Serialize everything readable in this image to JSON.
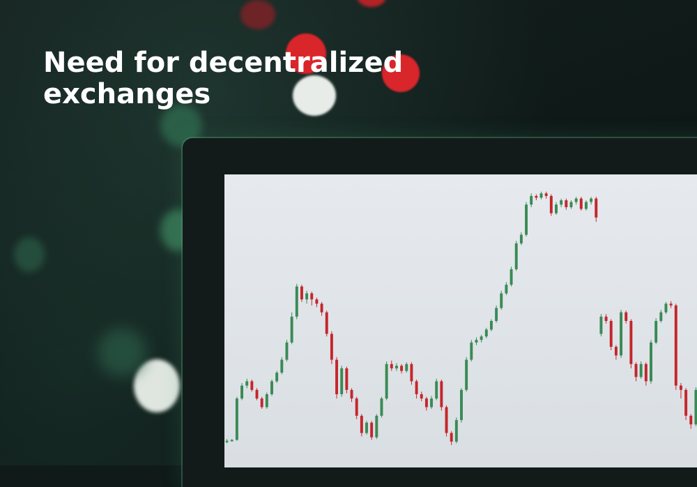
{
  "headline": {
    "line1": "Need for decentralized",
    "line2": "exchanges"
  },
  "colors": {
    "background": "#0f1a19",
    "headline_text": "#ffffff",
    "screen": "#e2e6ea",
    "candle_up": "#3a8a55",
    "candle_down": "#c4262b",
    "bokeh_red": "#d9262b",
    "bokeh_white": "#e8ece8",
    "bokeh_green": "#3f8a62"
  },
  "chart_data": {
    "type": "candlestick",
    "candles": [
      {
        "o": 90,
        "c": 91,
        "h": 93,
        "l": 88
      },
      {
        "o": 91,
        "c": 92,
        "h": 93,
        "l": 90
      },
      {
        "o": 92,
        "c": 140,
        "h": 142,
        "l": 91
      },
      {
        "o": 140,
        "c": 155,
        "h": 158,
        "l": 138
      },
      {
        "o": 155,
        "c": 160,
        "h": 163,
        "l": 152
      },
      {
        "o": 160,
        "c": 150,
        "h": 162,
        "l": 148
      },
      {
        "o": 150,
        "c": 140,
        "h": 152,
        "l": 138
      },
      {
        "o": 140,
        "c": 130,
        "h": 142,
        "l": 128
      },
      {
        "o": 130,
        "c": 145,
        "h": 147,
        "l": 128
      },
      {
        "o": 145,
        "c": 160,
        "h": 162,
        "l": 143
      },
      {
        "o": 160,
        "c": 170,
        "h": 172,
        "l": 158
      },
      {
        "o": 170,
        "c": 185,
        "h": 188,
        "l": 168
      },
      {
        "o": 185,
        "c": 205,
        "h": 208,
        "l": 183
      },
      {
        "o": 205,
        "c": 235,
        "h": 240,
        "l": 203
      },
      {
        "o": 235,
        "c": 270,
        "h": 273,
        "l": 232
      },
      {
        "o": 270,
        "c": 255,
        "h": 272,
        "l": 252
      },
      {
        "o": 255,
        "c": 262,
        "h": 265,
        "l": 250
      },
      {
        "o": 262,
        "c": 255,
        "h": 264,
        "l": 248
      },
      {
        "o": 255,
        "c": 250,
        "h": 257,
        "l": 246
      },
      {
        "o": 250,
        "c": 240,
        "h": 252,
        "l": 236
      },
      {
        "o": 240,
        "c": 215,
        "h": 242,
        "l": 212
      },
      {
        "o": 215,
        "c": 185,
        "h": 218,
        "l": 180
      },
      {
        "o": 185,
        "c": 145,
        "h": 188,
        "l": 140
      },
      {
        "o": 145,
        "c": 175,
        "h": 178,
        "l": 142
      },
      {
        "o": 175,
        "c": 150,
        "h": 177,
        "l": 146
      },
      {
        "o": 150,
        "c": 140,
        "h": 152,
        "l": 136
      },
      {
        "o": 140,
        "c": 120,
        "h": 142,
        "l": 116
      },
      {
        "o": 120,
        "c": 100,
        "h": 122,
        "l": 96
      },
      {
        "o": 100,
        "c": 112,
        "h": 114,
        "l": 98
      },
      {
        "o": 112,
        "c": 95,
        "h": 114,
        "l": 92
      },
      {
        "o": 95,
        "c": 120,
        "h": 122,
        "l": 93
      },
      {
        "o": 120,
        "c": 140,
        "h": 142,
        "l": 118
      },
      {
        "o": 140,
        "c": 180,
        "h": 183,
        "l": 138
      },
      {
        "o": 180,
        "c": 175,
        "h": 184,
        "l": 172
      },
      {
        "o": 175,
        "c": 178,
        "h": 181,
        "l": 172
      },
      {
        "o": 178,
        "c": 172,
        "h": 180,
        "l": 169
      },
      {
        "o": 172,
        "c": 180,
        "h": 182,
        "l": 170
      },
      {
        "o": 180,
        "c": 160,
        "h": 182,
        "l": 156
      },
      {
        "o": 160,
        "c": 145,
        "h": 162,
        "l": 140
      },
      {
        "o": 145,
        "c": 140,
        "h": 148,
        "l": 137
      },
      {
        "o": 140,
        "c": 130,
        "h": 142,
        "l": 126
      },
      {
        "o": 130,
        "c": 140,
        "h": 143,
        "l": 128
      },
      {
        "o": 140,
        "c": 160,
        "h": 163,
        "l": 138
      },
      {
        "o": 160,
        "c": 130,
        "h": 162,
        "l": 126
      },
      {
        "o": 130,
        "c": 100,
        "h": 132,
        "l": 96
      },
      {
        "o": 100,
        "c": 90,
        "h": 102,
        "l": 86
      },
      {
        "o": 90,
        "c": 115,
        "h": 118,
        "l": 88
      },
      {
        "o": 115,
        "c": 150,
        "h": 152,
        "l": 112
      },
      {
        "o": 150,
        "c": 185,
        "h": 188,
        "l": 148
      },
      {
        "o": 185,
        "c": 205,
        "h": 208,
        "l": 183
      },
      {
        "o": 205,
        "c": 208,
        "h": 211,
        "l": 202
      },
      {
        "o": 208,
        "c": 212,
        "h": 214,
        "l": 205
      },
      {
        "o": 212,
        "c": 220,
        "h": 222,
        "l": 210
      },
      {
        "o": 220,
        "c": 230,
        "h": 232,
        "l": 218
      },
      {
        "o": 230,
        "c": 245,
        "h": 248,
        "l": 228
      },
      {
        "o": 245,
        "c": 262,
        "h": 265,
        "l": 243
      },
      {
        "o": 262,
        "c": 272,
        "h": 275,
        "l": 260
      },
      {
        "o": 272,
        "c": 290,
        "h": 293,
        "l": 270
      },
      {
        "o": 290,
        "c": 320,
        "h": 323,
        "l": 288
      },
      {
        "o": 320,
        "c": 330,
        "h": 333,
        "l": 318
      },
      {
        "o": 330,
        "c": 365,
        "h": 368,
        "l": 328
      },
      {
        "o": 365,
        "c": 375,
        "h": 378,
        "l": 362
      },
      {
        "o": 375,
        "c": 373,
        "h": 377,
        "l": 370
      },
      {
        "o": 373,
        "c": 378,
        "h": 380,
        "l": 371
      },
      {
        "o": 378,
        "c": 375,
        "h": 380,
        "l": 372
      },
      {
        "o": 375,
        "c": 355,
        "h": 377,
        "l": 352
      },
      {
        "o": 355,
        "c": 365,
        "h": 368,
        "l": 353
      },
      {
        "o": 365,
        "c": 370,
        "h": 372,
        "l": 362
      },
      {
        "o": 370,
        "c": 362,
        "h": 372,
        "l": 359
      },
      {
        "o": 362,
        "c": 368,
        "h": 370,
        "l": 360
      },
      {
        "o": 368,
        "c": 372,
        "h": 374,
        "l": 365
      },
      {
        "o": 372,
        "c": 360,
        "h": 374,
        "l": 358
      },
      {
        "o": 360,
        "c": 368,
        "h": 370,
        "l": 358
      },
      {
        "o": 368,
        "c": 372,
        "h": 374,
        "l": 365
      },
      {
        "o": 372,
        "c": 350,
        "h": 374,
        "l": 345
      },
      {
        "o": 215,
        "c": 235,
        "h": 238,
        "l": 212
      },
      {
        "o": 235,
        "c": 230,
        "h": 238,
        "l": 227
      },
      {
        "o": 230,
        "c": 200,
        "h": 232,
        "l": 196
      },
      {
        "o": 200,
        "c": 190,
        "h": 202,
        "l": 185
      },
      {
        "o": 190,
        "c": 240,
        "h": 243,
        "l": 187
      },
      {
        "o": 240,
        "c": 230,
        "h": 242,
        "l": 227
      },
      {
        "o": 230,
        "c": 180,
        "h": 232,
        "l": 175
      },
      {
        "o": 180,
        "c": 165,
        "h": 182,
        "l": 160
      },
      {
        "o": 165,
        "c": 180,
        "h": 183,
        "l": 163
      },
      {
        "o": 180,
        "c": 160,
        "h": 182,
        "l": 155
      },
      {
        "o": 160,
        "c": 205,
        "h": 208,
        "l": 157
      },
      {
        "o": 205,
        "c": 230,
        "h": 233,
        "l": 203
      },
      {
        "o": 230,
        "c": 240,
        "h": 243,
        "l": 228
      },
      {
        "o": 240,
        "c": 250,
        "h": 252,
        "l": 238
      },
      {
        "o": 250,
        "c": 248,
        "h": 253,
        "l": 245
      },
      {
        "o": 248,
        "c": 155,
        "h": 250,
        "l": 150
      },
      {
        "o": 155,
        "c": 150,
        "h": 158,
        "l": 140
      },
      {
        "o": 150,
        "c": 120,
        "h": 152,
        "l": 115
      },
      {
        "o": 120,
        "c": 110,
        "h": 122,
        "l": 105
      },
      {
        "o": 110,
        "c": 150,
        "h": 153,
        "l": 108
      }
    ]
  }
}
